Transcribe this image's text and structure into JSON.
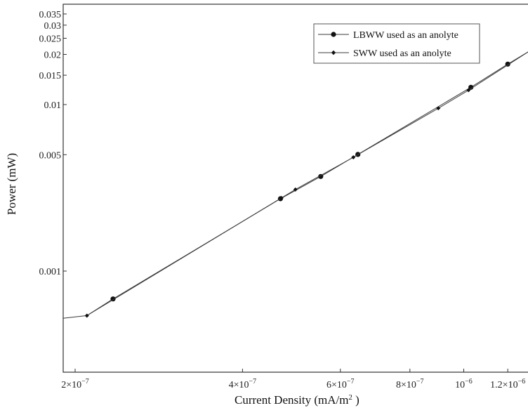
{
  "chart_data": {
    "type": "line",
    "xscale": "log",
    "yscale": "log",
    "xlabel": "Current Density (mA/m",
    "xlabel_sup": "2",
    "xlabel_close": " )",
    "ylabel": "Power (mW)",
    "xlim": [
      1.9e-07,
      1.32e-06
    ],
    "ylim": [
      0.0003,
      0.042
    ],
    "x_ticks": [
      {
        "value": 2e-07,
        "label": "2×10"
      },
      {
        "value": 4e-07,
        "label": "4×10"
      },
      {
        "value": 6e-07,
        "label": "6×10"
      },
      {
        "value": 8e-07,
        "label": "8×10"
      },
      {
        "value": 1e-06,
        "label": "10"
      },
      {
        "value": 1.2e-06,
        "label": "1.2×10"
      }
    ],
    "x_tick_exps": [
      "−7",
      "−7",
      "−7",
      "−7",
      "−6",
      "−6"
    ],
    "y_ticks": [
      {
        "value": 0.001,
        "label": "0.001"
      },
      {
        "value": 0.005,
        "label": "0.005"
      },
      {
        "value": 0.01,
        "label": "0.01"
      },
      {
        "value": 0.015,
        "label": "0.015"
      },
      {
        "value": 0.02,
        "label": "0.02"
      },
      {
        "value": 0.025,
        "label": "0.025"
      },
      {
        "value": 0.03,
        "label": "0.03"
      },
      {
        "value": 0.035,
        "label": "0.035"
      }
    ],
    "legend_position": "top-right",
    "series": [
      {
        "name": "LBWW used as an anolyte",
        "marker": "circle",
        "points": [
          [
            2.1e-07,
            0.00054
          ],
          [
            2.34e-07,
            0.00068
          ],
          [
            4.68e-07,
            0.00272
          ],
          [
            5.53e-07,
            0.0037
          ],
          [
            6.45e-07,
            0.00502
          ],
          [
            1.03e-06,
            0.0127
          ],
          [
            1.2e-06,
            0.0175
          ],
          [
            1.32e-06,
            0.0212
          ]
        ]
      },
      {
        "name": "SWW used as an anolyte",
        "marker": "diamond",
        "points": [
          [
            1.9e-07,
            0.00052
          ],
          [
            2.1e-07,
            0.00054
          ],
          [
            4.7e-07,
            0.00275
          ],
          [
            4.98e-07,
            0.00309
          ],
          [
            6.33e-07,
            0.00482
          ],
          [
            9e-07,
            0.0095
          ],
          [
            1.02e-06,
            0.0122
          ],
          [
            1.32e-06,
            0.0212
          ]
        ]
      }
    ],
    "colors": {
      "line": "#3a3a3a",
      "marker": "#111111",
      "frame": "#333333"
    }
  }
}
